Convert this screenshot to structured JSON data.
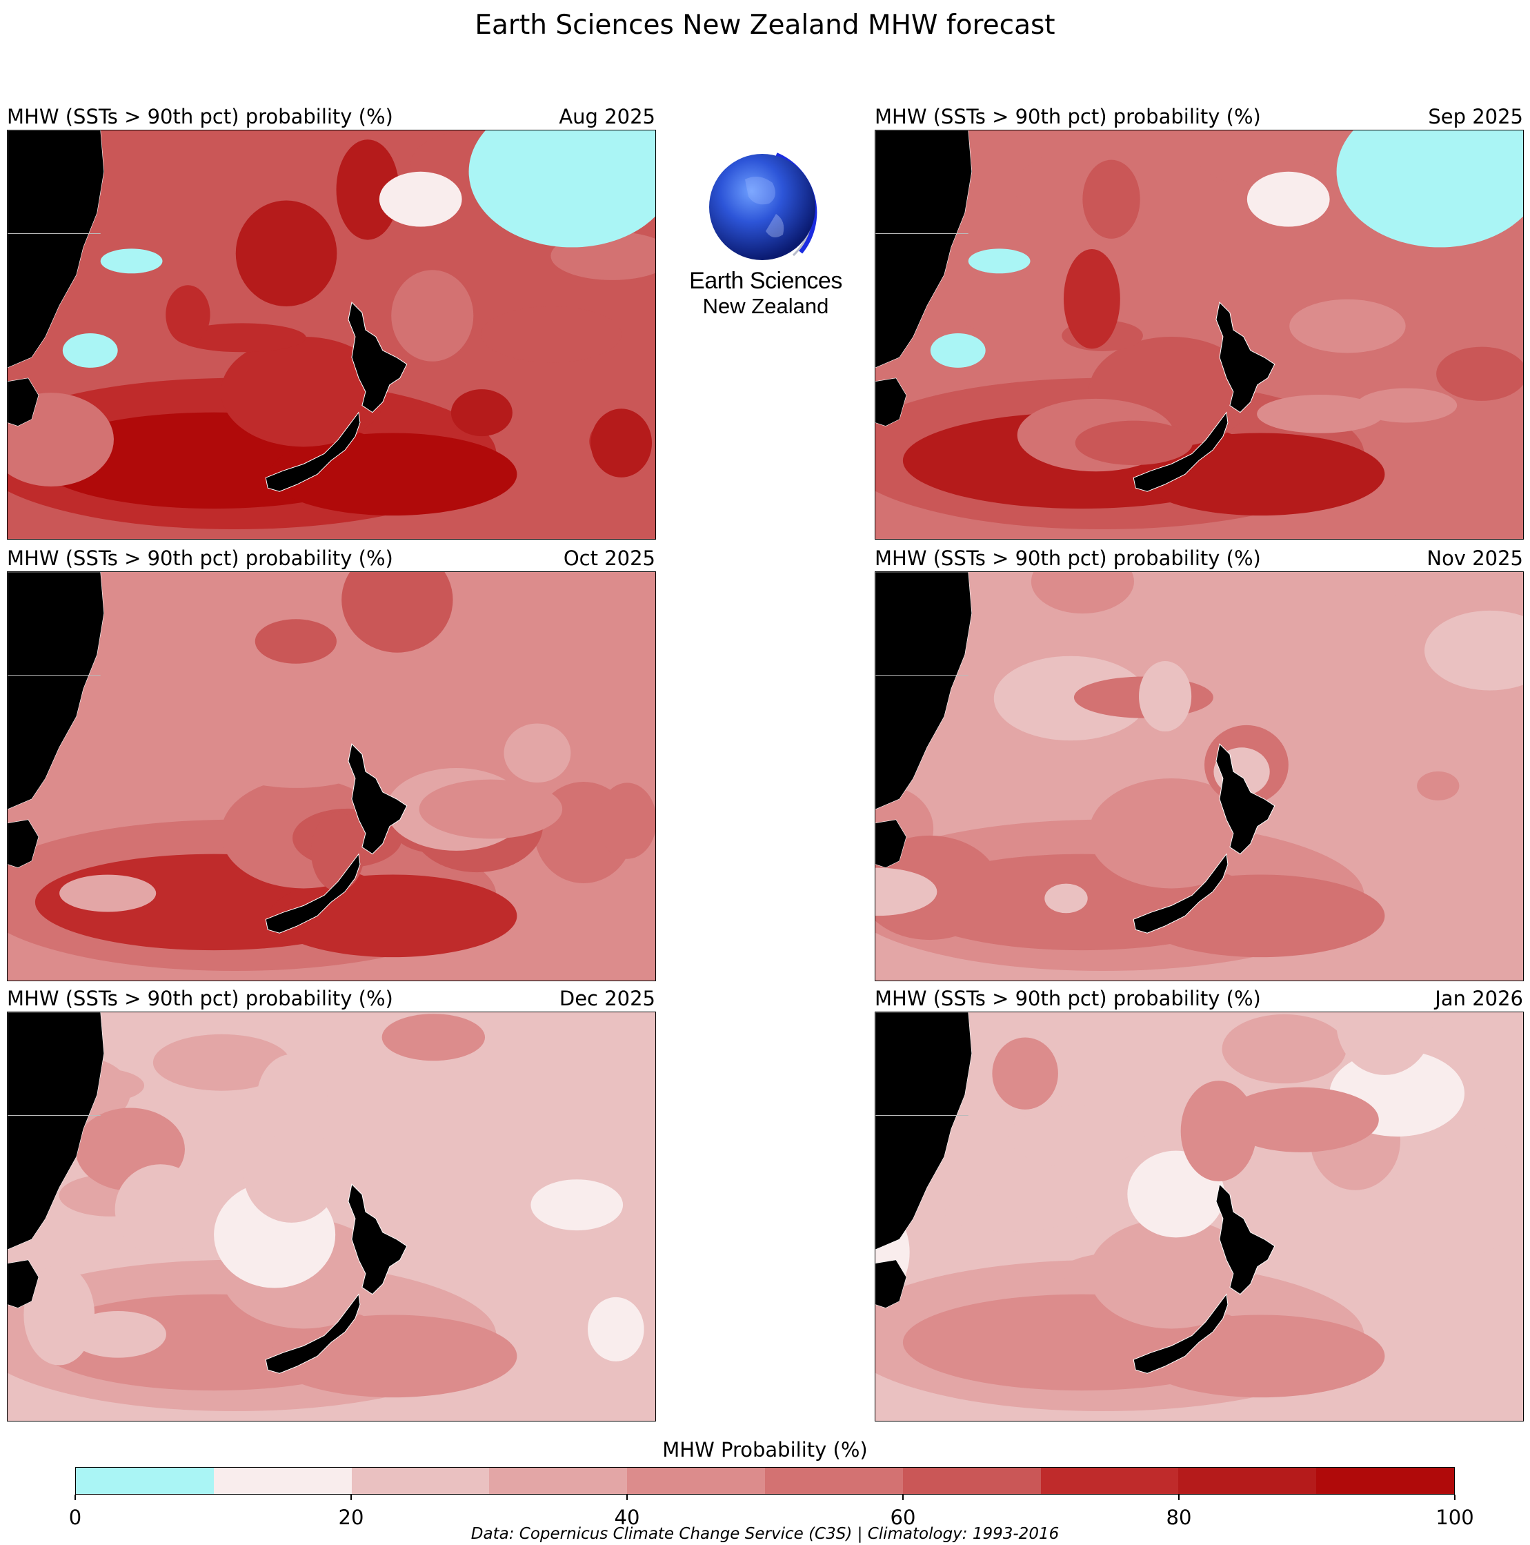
{
  "title": "Earth Sciences New Zealand MHW forecast",
  "logo": {
    "name": "earth-sciences-logo",
    "line1": "Earth Sciences",
    "line2": "New Zealand",
    "colors": {
      "globe": "#1e3cc8",
      "ring": "#2233dd"
    }
  },
  "panels": [
    {
      "title": "MHW (SSTs > 90th pct) probability (%)",
      "date": "Aug 2025",
      "level": "very-high"
    },
    {
      "title": "MHW (SSTs > 90th pct) probability (%)",
      "date": "Sep 2025",
      "level": "high"
    },
    {
      "title": "MHW (SSTs > 90th pct) probability (%)",
      "date": "Oct 2025",
      "level": "high-moderate"
    },
    {
      "title": "MHW (SSTs > 90th pct) probability (%)",
      "date": "Nov 2025",
      "level": "moderate"
    },
    {
      "title": "MHW (SSTs > 90th pct) probability (%)",
      "date": "Dec 2025",
      "level": "moderate-low"
    },
    {
      "title": "MHW (SSTs > 90th pct) probability (%)",
      "date": "Jan 2026",
      "level": "low"
    }
  ],
  "colorbar": {
    "title": "MHW Probability (%)",
    "colors": [
      "#aaf5f5",
      "#f9eded",
      "#eac1c1",
      "#e3a6a6",
      "#dc8c8c",
      "#d37272",
      "#ca5757",
      "#bf2b2b",
      "#b51b1b",
      "#b00a0a"
    ],
    "ticks": [
      "0",
      "20",
      "40",
      "60",
      "80",
      "100"
    ],
    "range": [
      0,
      100
    ]
  },
  "land_color": "#000000",
  "footnote": "Data: Copernicus Climate Change Service (C3S) | Climatology: 1993-2016"
}
